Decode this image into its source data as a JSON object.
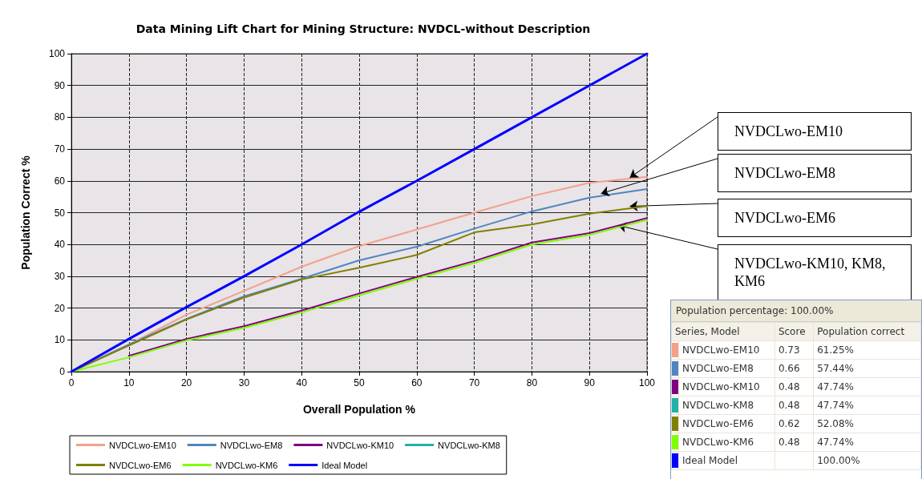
{
  "chart_data": [
    {
      "type": "line",
      "title": "Data Mining Lift Chart for Mining Structure: NVDCL-without Description",
      "xlabel": "Overall Population %",
      "ylabel": "Population Correct %",
      "x": [
        0,
        10,
        20,
        30,
        40,
        50,
        60,
        70,
        80,
        90,
        100
      ],
      "series": [
        {
          "name": "NVDCLwo-EM10",
          "color": "#f4a08a",
          "values": [
            0,
            8.5,
            17.9,
            25.4,
            33,
            39.5,
            44.7,
            50,
            55.2,
            59.4,
            61.25
          ]
        },
        {
          "name": "NVDCLwo-EM8",
          "color": "#4f86c0",
          "values": [
            0,
            8.5,
            16.6,
            23.7,
            29.2,
            35,
            39.3,
            45,
            50.4,
            54.7,
            57.44
          ]
        },
        {
          "name": "NVDCLwo-KM10",
          "color": "#800080",
          "values": [
            null,
            5,
            10.3,
            14.3,
            19.2,
            24.6,
            29.8,
            34.8,
            40.6,
            43.6,
            48.3
          ]
        },
        {
          "name": "NVDCLwo-KM8",
          "color": "#20b2aa",
          "values": [
            null,
            null,
            null,
            null,
            null,
            null,
            null,
            null,
            null,
            null,
            null
          ]
        },
        {
          "name": "NVDCLwo-EM6",
          "color": "#808000",
          "values": [
            0,
            8.2,
            16.4,
            23.3,
            29,
            32.7,
            36.7,
            43.8,
            46.3,
            49.7,
            52.08
          ]
        },
        {
          "name": "NVDCLwo-KM6",
          "color": "#7fff00",
          "values": [
            0,
            4.5,
            9.8,
            13.8,
            18.6,
            24,
            29.2,
            34.2,
            40,
            43,
            47.74
          ]
        },
        {
          "name": "Ideal Model",
          "color": "#0000ff",
          "values": [
            0,
            10.3,
            20.3,
            30,
            40,
            50.3,
            60,
            70,
            80,
            90,
            100
          ]
        }
      ],
      "xlim": [
        0,
        100
      ],
      "xticks": [
        0,
        10,
        20,
        30,
        40,
        50,
        60,
        70,
        80,
        90,
        100
      ],
      "ylim": [
        0,
        100
      ],
      "yticks": [
        0,
        10,
        20,
        30,
        40,
        50,
        60,
        70,
        80,
        90,
        100
      ],
      "grid": true,
      "legend": "bottom",
      "annotations": [
        {
          "text": "NVDCLwo-EM10",
          "x": 97,
          "y": 61
        },
        {
          "text": "NVDCLwo-EM8",
          "x": 92,
          "y": 56
        },
        {
          "text": "NVDCLwo-EM6",
          "x": 97,
          "y": 52
        },
        {
          "text": "NVDCLwo-KM10, KM8, KM6",
          "x": 95,
          "y": 46
        }
      ]
    },
    {
      "type": "other",
      "title": "Population percentage: 100.00%",
      "xlabel": "Series, Model",
      "categories": [
        "NVDCLwo-EM10",
        "NVDCLwo-EM8",
        "NVDCLwo-KM10",
        "NVDCLwo-KM8",
        "NVDCLwo-EM6",
        "NVDCLwo-KM6",
        "Ideal Model"
      ],
      "colors": [
        "#f4a08a",
        "#4f86c0",
        "#800080",
        "#20b2aa",
        "#808000",
        "#7fff00",
        "#0000ff"
      ],
      "series": [
        {
          "name": "Score",
          "values": [
            0.73,
            0.66,
            0.48,
            0.48,
            0.62,
            0.48,
            null
          ],
          "value_labels": [
            "0.73",
            "0.66",
            "0.48",
            "0.48",
            "0.62",
            "0.48",
            null
          ]
        },
        {
          "name": "Population correct",
          "values": [
            61.25,
            57.44,
            47.74,
            47.74,
            52.08,
            47.74,
            100
          ],
          "value_labels": [
            "61.25%",
            "57.44%",
            "47.74%",
            "47.74%",
            "52.08%",
            "47.74%",
            "100.00%"
          ]
        }
      ]
    }
  ]
}
